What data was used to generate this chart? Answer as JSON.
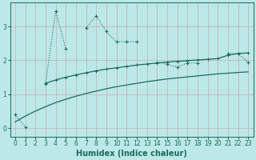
{
  "xlabel": "Humidex (Indice chaleur)",
  "bg_color": "#bde8e8",
  "grid_color": "#c8a0a0",
  "line_color": "#1a6b5a",
  "x_ticks": [
    0,
    1,
    2,
    3,
    4,
    5,
    6,
    7,
    8,
    9,
    10,
    11,
    12,
    13,
    14,
    15,
    16,
    17,
    18,
    19,
    20,
    21,
    22,
    23
  ],
  "y_ticks": [
    0,
    1,
    2,
    3
  ],
  "ylim": [
    -0.25,
    3.7
  ],
  "xlim": [
    -0.5,
    23.5
  ],
  "series1_segments": [
    {
      "x": [
        0,
        1
      ],
      "y": [
        0.4,
        0.03
      ]
    },
    {
      "x": [
        3,
        4,
        5
      ],
      "y": [
        1.3,
        3.45,
        2.35
      ]
    },
    {
      "x": [
        7,
        8,
        9,
        10,
        11,
        12
      ],
      "y": [
        2.95,
        3.32,
        2.85,
        2.55,
        2.55,
        2.55
      ]
    },
    {
      "x": [
        14,
        15,
        16,
        17,
        18
      ],
      "y": [
        1.95,
        1.88,
        1.8,
        1.92,
        1.92
      ]
    },
    {
      "x": [
        21,
        22,
        23
      ],
      "y": [
        2.2,
        2.2,
        1.95
      ]
    }
  ],
  "series2": {
    "x": [
      3,
      4,
      5,
      6,
      7,
      8,
      9,
      10,
      11,
      12,
      13,
      14,
      15,
      16,
      17,
      18,
      19,
      20,
      21,
      22,
      23
    ],
    "y": [
      1.32,
      1.42,
      1.5,
      1.57,
      1.63,
      1.69,
      1.74,
      1.78,
      1.82,
      1.86,
      1.89,
      1.92,
      1.95,
      1.97,
      1.99,
      2.01,
      2.03,
      2.05,
      2.15,
      2.2,
      2.22
    ]
  },
  "series3": {
    "x": [
      0,
      1,
      2,
      3,
      4,
      5,
      6,
      7,
      8,
      9,
      10,
      11,
      12,
      13,
      14,
      15,
      16,
      17,
      18,
      19,
      20,
      21,
      22,
      23
    ],
    "y": [
      0.18,
      0.35,
      0.5,
      0.63,
      0.75,
      0.85,
      0.94,
      1.02,
      1.09,
      1.16,
      1.22,
      1.27,
      1.32,
      1.37,
      1.41,
      1.45,
      1.48,
      1.51,
      1.54,
      1.57,
      1.6,
      1.62,
      1.64,
      1.66
    ]
  }
}
